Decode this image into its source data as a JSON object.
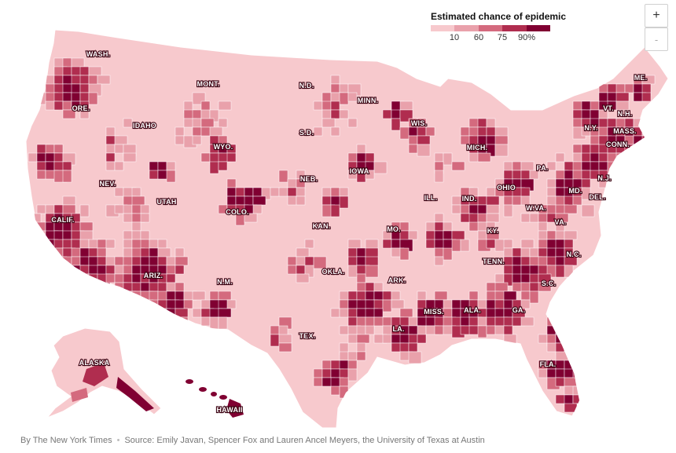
{
  "legend": {
    "title": "Estimated chance of epidemic",
    "ticks": [
      "10",
      "60",
      "75",
      "90%"
    ],
    "colors": [
      "#f7c9cd",
      "#e9a1ab",
      "#d46a7e",
      "#b02d4f",
      "#800032"
    ]
  },
  "zoom": {
    "in_label": "+",
    "out_label": "-"
  },
  "footer": {
    "byline": "By The New York Times",
    "source": "Source: Emily Javan, Spencer Fox and Lauren Ancel Meyers, the University of Texas at Austin"
  },
  "state_labels": [
    "WASH.",
    "ORE.",
    "CALIF.",
    "NEV.",
    "IDAHO",
    "MONT.",
    "WYO.",
    "UTAH",
    "ARIZ.",
    "COLO.",
    "N.M.",
    "N.D.",
    "S.D.",
    "NEB.",
    "KAN.",
    "OKLA.",
    "TEX.",
    "MINN.",
    "IOWA",
    "MO.",
    "ARK.",
    "LA.",
    "WIS.",
    "ILL.",
    "MISS.",
    "MICH.",
    "IND.",
    "KY.",
    "TENN.",
    "ALA.",
    "OHIO",
    "GA.",
    "FLA.",
    "S.C.",
    "N.C.",
    "VA.",
    "W.VA.",
    "PA.",
    "MD.",
    "DEL.",
    "N.J.",
    "N.Y.",
    "CONN.",
    "MASS.",
    "VT.",
    "N.H.",
    "ME.",
    "ALASKA",
    "HAWAII"
  ],
  "colors": {
    "background": "#ffffff",
    "land_base": "#f7c9cd",
    "highest": "#800032",
    "border": "#ffffff"
  }
}
